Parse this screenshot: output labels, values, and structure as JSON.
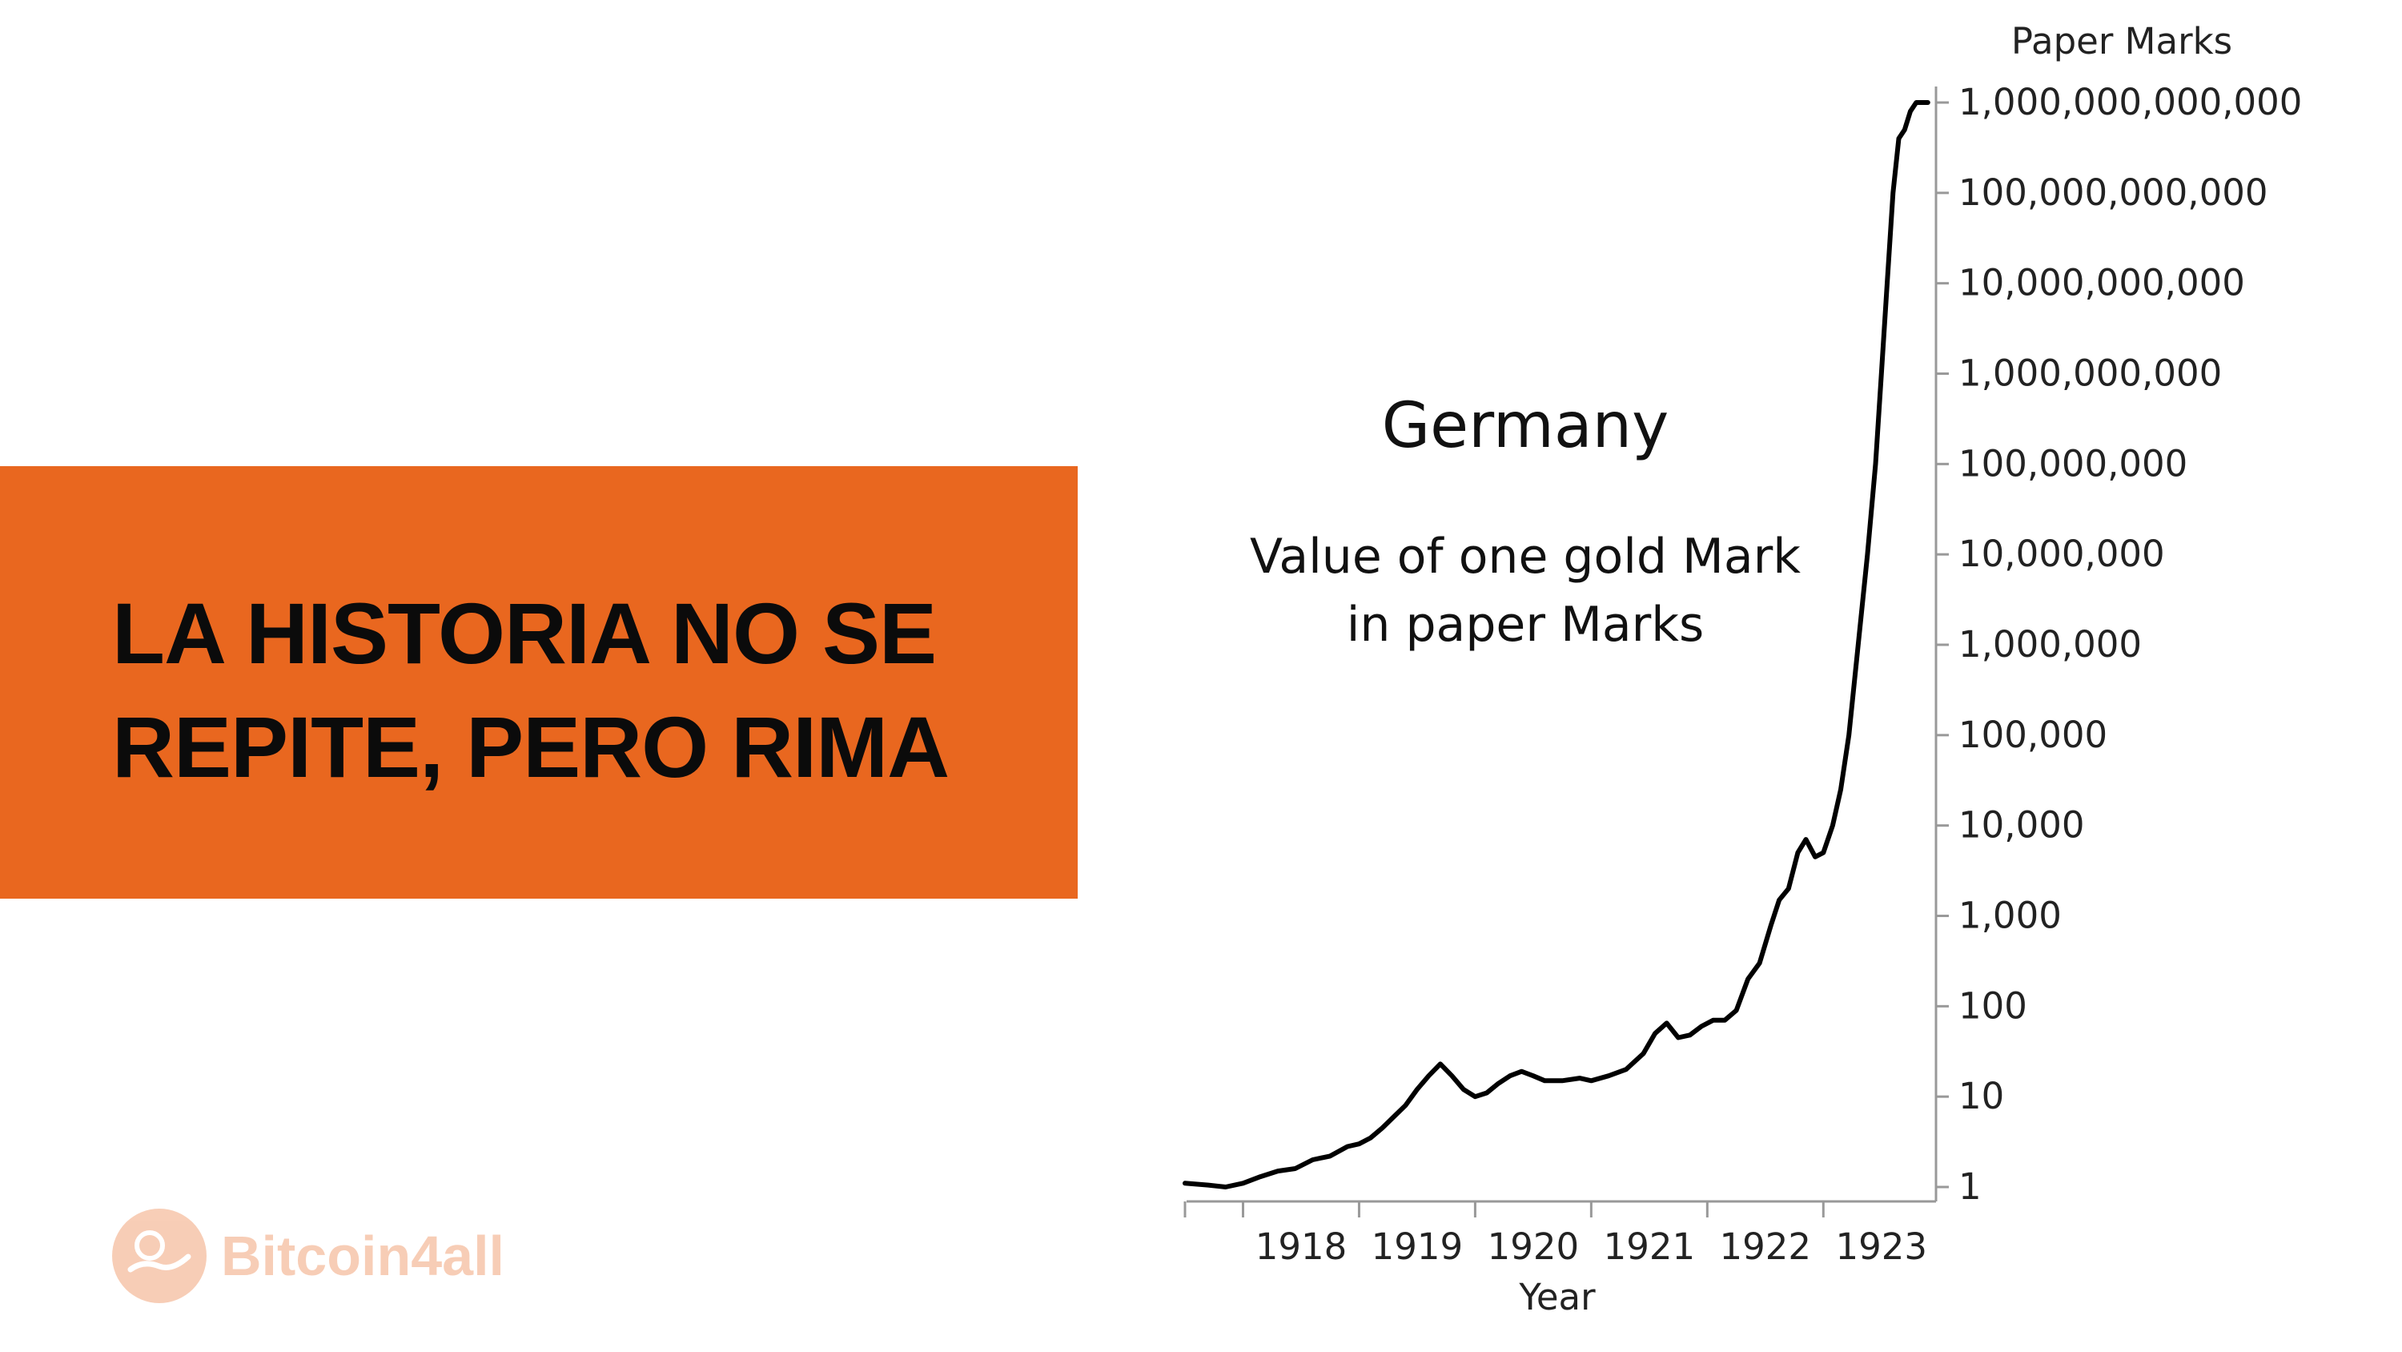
{
  "banner": {
    "line1": "LA HISTORIA NO SE",
    "line2": "REPITE, PERO RIMA",
    "color": "#e9671f"
  },
  "logo": {
    "icon": "hand-coin-icon",
    "text": "Bitcoin4all"
  },
  "chart_data": {
    "type": "line",
    "title": "Germany",
    "subtitle_lines": [
      "Value of one gold Mark",
      "in paper Marks"
    ],
    "xlabel": "Year",
    "ylabel": "Paper Marks",
    "yscale": "log",
    "xlim": [
      1917.5,
      1923.95
    ],
    "ylim": [
      1,
      1000000000000
    ],
    "xticks": [
      1918,
      1919,
      1920,
      1921,
      1922,
      1923
    ],
    "x_tick_labels": [
      "1918",
      "1919",
      "1920",
      "1921",
      "1922",
      "1923"
    ],
    "yticks": [
      1,
      10,
      100,
      1000,
      10000,
      100000,
      1000000,
      10000000,
      100000000,
      1000000000,
      10000000000,
      100000000000,
      1000000000000
    ],
    "y_tick_labels": [
      "1",
      "10",
      "100",
      "1,000",
      "10,000",
      "100,000",
      "1,000,000",
      "10,000,000",
      "100,000,000",
      "1,000,000,000",
      "10,000,000,000",
      "100,000,000,000",
      "1,000,000,000,000"
    ],
    "series": [
      {
        "name": "Gold Mark in paper Marks",
        "x": [
          1917.5,
          1917.7,
          1917.85,
          1918.0,
          1918.15,
          1918.3,
          1918.45,
          1918.6,
          1918.75,
          1918.9,
          1919.0,
          1919.1,
          1919.2,
          1919.3,
          1919.4,
          1919.5,
          1919.6,
          1919.7,
          1919.8,
          1919.9,
          1920.0,
          1920.1,
          1920.2,
          1920.3,
          1920.4,
          1920.5,
          1920.6,
          1920.75,
          1920.9,
          1921.0,
          1921.15,
          1921.3,
          1921.45,
          1921.55,
          1921.65,
          1921.75,
          1921.85,
          1921.95,
          1922.05,
          1922.15,
          1922.25,
          1922.35,
          1922.45,
          1922.55,
          1922.62,
          1922.7,
          1922.78,
          1922.85,
          1922.93,
          1923.0,
          1923.08,
          1923.15,
          1923.22,
          1923.3,
          1923.38,
          1923.45,
          1923.5,
          1923.55,
          1923.6,
          1923.65,
          1923.7,
          1923.75,
          1923.8,
          1923.85,
          1923.9
        ],
        "y": [
          1.1,
          1.05,
          1.0,
          1.1,
          1.3,
          1.5,
          1.6,
          2.0,
          2.2,
          2.8,
          3.0,
          3.5,
          4.5,
          6.0,
          8.0,
          12,
          17,
          23,
          17,
          12,
          10,
          11,
          14,
          17,
          19,
          17,
          15,
          15,
          16,
          15,
          17,
          20,
          30,
          50,
          65,
          45,
          48,
          60,
          70,
          70,
          90,
          200,
          300,
          800,
          1500,
          2000,
          5000,
          7000,
          4500,
          5000,
          10000,
          25000,
          100000,
          1000000,
          10000000,
          100000000,
          1000000000,
          10000000000,
          100000000000,
          400000000000,
          500000000000,
          800000000000,
          1000000000000,
          1000000000000,
          1000000000000
        ]
      }
    ]
  }
}
